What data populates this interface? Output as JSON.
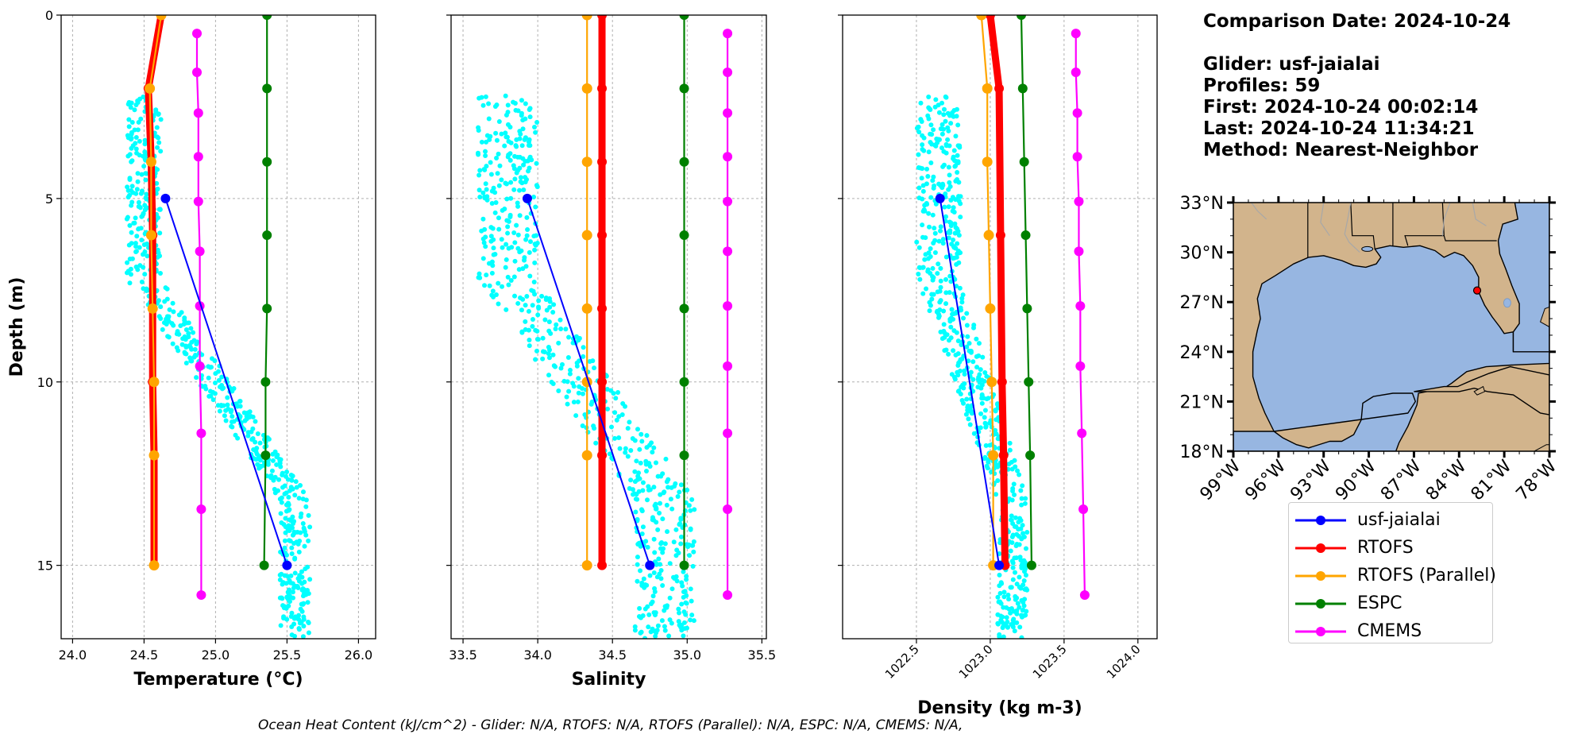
{
  "info": {
    "comparison_date": "Comparison Date: 2024-10-24",
    "glider": "Glider: usf-jaialai",
    "profiles": "Profiles: 59",
    "first": "First: 2024-10-24 00:02:14",
    "last": "Last: 2024-10-24 11:34:21",
    "method": "Method: Nearest-Neighbor"
  },
  "footer": "Ocean Heat Content (kJ/cm^2) - Glider: N/A,  RTOFS: N/A,  RTOFS (Parallel): N/A,  ESPC: N/A,  CMEMS: N/A,",
  "colors": {
    "glider": "#0000ff",
    "scatter": "#00ffff",
    "rtofs": "#ff0000",
    "rtofs_parallel": "#ffa500",
    "espc": "#008000",
    "cmems": "#ff00ff",
    "land": "#d2b48c",
    "water": "#97b6e1"
  },
  "legend": [
    {
      "label": "usf-jaialai",
      "color": "#0000ff"
    },
    {
      "label": "RTOFS",
      "color": "#ff0000"
    },
    {
      "label": "RTOFS (Parallel)",
      "color": "#ffa500"
    },
    {
      "label": "ESPC",
      "color": "#008000"
    },
    {
      "label": "CMEMS",
      "color": "#ff00ff"
    }
  ],
  "chart_data": [
    {
      "type": "line",
      "xlabel": "Temperature (°C)",
      "ylabel": "Depth (m)",
      "xlim": [
        23.92,
        26.12
      ],
      "ylim": [
        17,
        0
      ],
      "xticks": [
        24.0,
        24.5,
        25.0,
        25.5,
        26.0
      ],
      "xtick_labels": [
        "24.0",
        "24.5",
        "25.0",
        "25.5",
        "26.0"
      ],
      "yticks": [
        0,
        5,
        10,
        15
      ],
      "grid": true,
      "scatter_range": {
        "x0": [
          24.38,
          24.62
        ],
        "x1": [
          25.45,
          25.66
        ]
      },
      "series": [
        {
          "name": "usf-jaialai",
          "x": [
            24.65,
            25.5
          ],
          "y": [
            5,
            15
          ]
        },
        {
          "name": "RTOFS",
          "x": [
            24.62,
            24.53,
            24.55,
            24.56,
            24.56,
            24.57,
            24.57
          ],
          "y": [
            0,
            2,
            4,
            6,
            10,
            12,
            15
          ]
        },
        {
          "name": "RTOFS (Parallel)",
          "x": [
            24.62,
            24.54,
            24.55,
            24.55,
            24.56,
            24.57,
            24.57,
            24.57
          ],
          "y": [
            0,
            2,
            4,
            6,
            8,
            10,
            12,
            15
          ]
        },
        {
          "name": "ESPC",
          "x": [
            25.36,
            25.36,
            25.36,
            25.36,
            25.36,
            25.35,
            25.35,
            25.34
          ],
          "y": [
            0,
            2,
            4,
            6,
            8,
            10,
            12,
            15
          ]
        },
        {
          "name": "CMEMS",
          "x": [
            24.87,
            24.87,
            24.88,
            24.88,
            24.88,
            24.89,
            24.89,
            24.89,
            24.9,
            24.9,
            24.9
          ],
          "y": [
            0.5,
            1.56,
            2.67,
            3.86,
            5.08,
            6.44,
            7.93,
            9.57,
            11.4,
            13.47,
            15.81
          ]
        }
      ]
    },
    {
      "type": "line",
      "xlabel": "Salinity",
      "ylabel": "",
      "xlim": [
        33.42,
        35.53
      ],
      "ylim": [
        17,
        0
      ],
      "xticks": [
        33.5,
        34.0,
        34.5,
        35.0,
        35.5
      ],
      "xtick_labels": [
        "33.5",
        "34.0",
        "34.5",
        "35.0",
        "35.5"
      ],
      "yticks": [
        0,
        5,
        10,
        15
      ],
      "grid": true,
      "scatter_range": {
        "x0": [
          33.6,
          34.0
        ],
        "x1": [
          34.65,
          35.05
        ]
      },
      "series": [
        {
          "name": "usf-jaialai",
          "x": [
            33.93,
            34.75
          ],
          "y": [
            5,
            15
          ]
        },
        {
          "name": "RTOFS",
          "x": [
            34.43,
            34.43,
            34.43,
            34.43,
            34.43,
            34.43,
            34.43,
            34.43
          ],
          "y": [
            0,
            2,
            4,
            6,
            8,
            10,
            12,
            15
          ]
        },
        {
          "name": "RTOFS (Parallel)",
          "x": [
            34.33,
            34.33,
            34.33,
            34.33,
            34.33,
            34.33,
            34.33,
            34.33
          ],
          "y": [
            0,
            2,
            4,
            6,
            8,
            10,
            12,
            15
          ]
        },
        {
          "name": "ESPC",
          "x": [
            34.98,
            34.98,
            34.98,
            34.98,
            34.98,
            34.98,
            34.98,
            34.98
          ],
          "y": [
            0,
            2,
            4,
            6,
            8,
            10,
            12,
            15
          ]
        },
        {
          "name": "CMEMS",
          "x": [
            35.27,
            35.27,
            35.27,
            35.27,
            35.27,
            35.27,
            35.27,
            35.27,
            35.27,
            35.27,
            35.27
          ],
          "y": [
            0.5,
            1.56,
            2.67,
            3.86,
            5.08,
            6.44,
            7.93,
            9.57,
            11.4,
            13.47,
            15.81
          ]
        }
      ]
    },
    {
      "type": "line",
      "xlabel": "Density (kg m-3)",
      "ylabel": "",
      "xlim": [
        1022.0,
        1024.13
      ],
      "ylim": [
        17,
        0
      ],
      "xticks": [
        1022.5,
        1023.0,
        1023.5,
        1024.0
      ],
      "xtick_labels": [
        "1022.5",
        "1023.0",
        "1023.5",
        "1024.0"
      ],
      "yticks": [
        0,
        5,
        10,
        15
      ],
      "grid": true,
      "scatter_range": {
        "x0": [
          1022.5,
          1022.8
        ],
        "x1": [
          1023.05,
          1023.25
        ]
      },
      "series": [
        {
          "name": "usf-jaialai",
          "x": [
            1022.66,
            1023.06
          ],
          "y": [
            5,
            15
          ]
        },
        {
          "name": "RTOFS",
          "x": [
            1023.0,
            1023.06,
            1023.07,
            1023.08,
            1023.09,
            1023.1
          ],
          "y": [
            0,
            2,
            6,
            10,
            12,
            15
          ]
        },
        {
          "name": "RTOFS (Parallel)",
          "x": [
            1022.94,
            1022.98,
            1022.98,
            1022.99,
            1023.0,
            1023.01,
            1023.02,
            1023.02
          ],
          "y": [
            0,
            2,
            4,
            6,
            8,
            10,
            12,
            15
          ]
        },
        {
          "name": "ESPC",
          "x": [
            1023.21,
            1023.22,
            1023.23,
            1023.24,
            1023.25,
            1023.26,
            1023.27,
            1023.28
          ],
          "y": [
            0,
            2,
            4,
            6,
            8,
            10,
            12,
            15
          ]
        },
        {
          "name": "CMEMS",
          "x": [
            1023.58,
            1023.58,
            1023.59,
            1023.59,
            1023.6,
            1023.6,
            1023.61,
            1023.61,
            1023.62,
            1023.63,
            1023.64
          ],
          "y": [
            0.5,
            1.56,
            2.67,
            3.86,
            5.08,
            6.44,
            7.93,
            9.57,
            11.4,
            13.47,
            15.81
          ]
        }
      ]
    },
    {
      "type": "map",
      "lon_range": [
        -99,
        -78
      ],
      "lat_range": [
        18,
        33
      ],
      "xtick_labels": [
        "99°W",
        "96°W",
        "93°W",
        "90°W",
        "87°W",
        "84°W",
        "81°W",
        "78°W"
      ],
      "ytick_labels": [
        "33°N",
        "30°N",
        "27°N",
        "24°N",
        "21°N",
        "18°N"
      ],
      "lon_ticks": [
        -99,
        -96,
        -93,
        -90,
        -87,
        -84,
        -81,
        -78
      ],
      "lat_ticks": [
        33,
        30,
        27,
        24,
        21,
        18
      ],
      "glider_location": {
        "lon": -82.8,
        "lat": 27.7
      }
    }
  ]
}
